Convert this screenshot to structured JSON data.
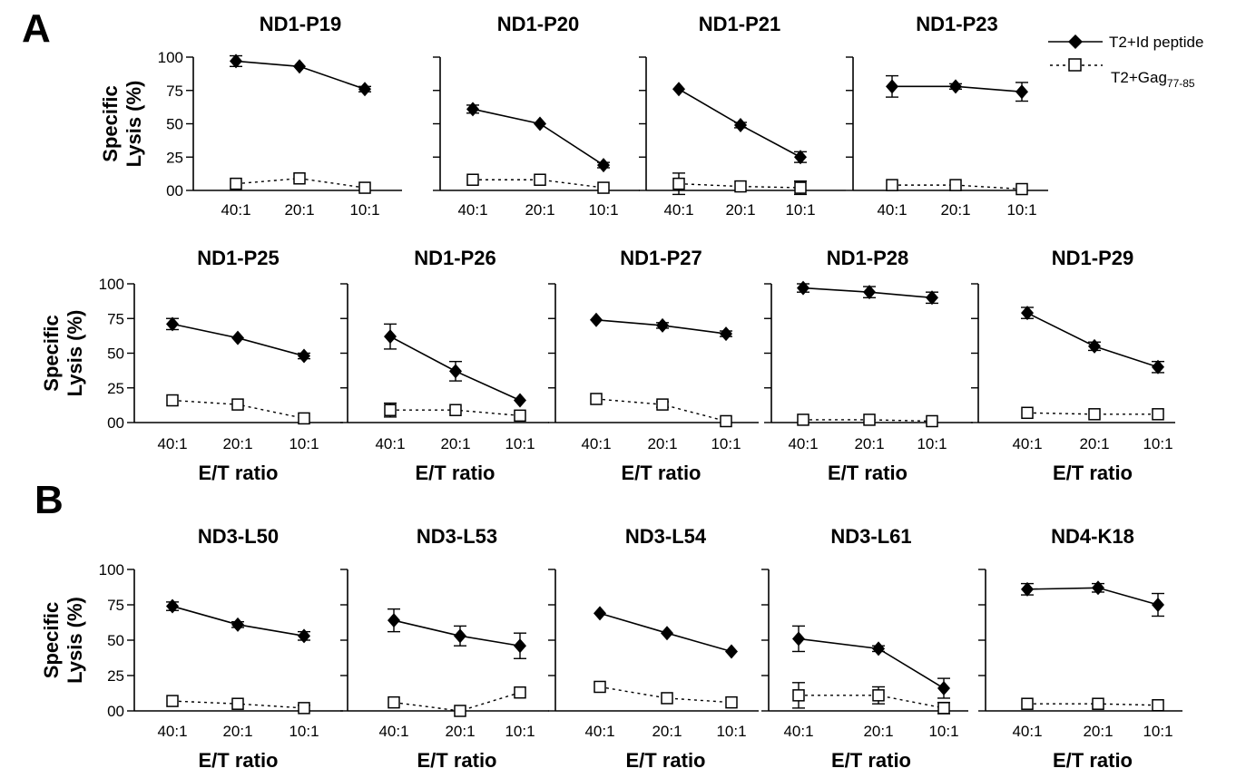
{
  "figure": {
    "panel_labels": {
      "A": "A",
      "B": "B"
    },
    "y_label_line1": "Specific",
    "y_label_line2": "Lysis (%)",
    "x_label": "E/T ratio",
    "legend": [
      {
        "label": "T2+Id peptide",
        "marker": "filled-diamond",
        "line": "solid"
      },
      {
        "label": "T2+Gag",
        "subscript": "77-85",
        "marker": "open-square",
        "line": "dotted"
      }
    ]
  },
  "colors": {
    "ink": "#000000",
    "background": "#ffffff"
  },
  "chart_data": [
    {
      "type": "line",
      "title": "ND1-P19",
      "categories": [
        "40:1",
        "20:1",
        "10:1"
      ],
      "ylim": [
        0,
        100
      ],
      "yticks": [
        "100",
        "75",
        "50",
        "25",
        "00"
      ],
      "show_yticks": true,
      "show_ylabel": true,
      "show_xlabel": false,
      "series": [
        {
          "name": "T2+Id peptide",
          "values": [
            97,
            93,
            76
          ],
          "errors": [
            4,
            1,
            2
          ]
        },
        {
          "name": "T2+Gag77-85",
          "values": [
            5,
            9,
            2
          ],
          "errors": [
            1,
            1,
            1
          ]
        }
      ]
    },
    {
      "type": "line",
      "title": "ND1-P20",
      "categories": [
        "40:1",
        "20:1",
        "10:1"
      ],
      "ylim": [
        0,
        100
      ],
      "yticks": [],
      "show_yticks": false,
      "show_ylabel": false,
      "show_xlabel": false,
      "series": [
        {
          "name": "T2+Id peptide",
          "values": [
            61,
            50,
            19
          ],
          "errors": [
            3,
            1,
            2
          ]
        },
        {
          "name": "T2+Gag77-85",
          "values": [
            8,
            8,
            2
          ],
          "errors": [
            1,
            1,
            1
          ]
        }
      ]
    },
    {
      "type": "line",
      "title": "ND1-P21",
      "categories": [
        "40:1",
        "20:1",
        "10:1"
      ],
      "ylim": [
        0,
        100
      ],
      "yticks": [],
      "show_yticks": false,
      "show_ylabel": false,
      "show_xlabel": false,
      "series": [
        {
          "name": "T2+Id peptide",
          "values": [
            76,
            49,
            25
          ],
          "errors": [
            1,
            2,
            4
          ]
        },
        {
          "name": "T2+Gag77-85",
          "values": [
            5,
            3,
            2
          ],
          "errors": [
            8,
            1,
            5
          ]
        }
      ]
    },
    {
      "type": "line",
      "title": "ND1-P23",
      "categories": [
        "40:1",
        "20:1",
        "10:1"
      ],
      "ylim": [
        0,
        100
      ],
      "yticks": [],
      "show_yticks": false,
      "show_ylabel": false,
      "show_xlabel": false,
      "series": [
        {
          "name": "T2+Id peptide",
          "values": [
            78,
            78,
            74
          ],
          "errors": [
            8,
            2,
            7
          ]
        },
        {
          "name": "T2+Gag77-85",
          "values": [
            4,
            4,
            1
          ],
          "errors": [
            1,
            1,
            1
          ]
        }
      ]
    },
    {
      "type": "line",
      "title": "ND1-P25",
      "categories": [
        "40:1",
        "20:1",
        "10:1"
      ],
      "ylim": [
        0,
        100
      ],
      "yticks": [
        "100",
        "75",
        "50",
        "25",
        "00"
      ],
      "show_yticks": true,
      "show_ylabel": true,
      "show_xlabel": true,
      "series": [
        {
          "name": "T2+Id peptide",
          "values": [
            71,
            61,
            48
          ],
          "errors": [
            4,
            1,
            2
          ]
        },
        {
          "name": "T2+Gag77-85",
          "values": [
            16,
            13,
            3
          ],
          "errors": [
            1,
            1,
            1
          ]
        }
      ]
    },
    {
      "type": "line",
      "title": "ND1-P26",
      "categories": [
        "40:1",
        "20:1",
        "10:1"
      ],
      "ylim": [
        0,
        100
      ],
      "yticks": [],
      "show_yticks": false,
      "show_ylabel": false,
      "show_xlabel": true,
      "series": [
        {
          "name": "T2+Id peptide",
          "values": [
            62,
            37,
            16
          ],
          "errors": [
            9,
            7,
            1
          ]
        },
        {
          "name": "T2+Gag77-85",
          "values": [
            9,
            9,
            5
          ],
          "errors": [
            5,
            1,
            1
          ]
        }
      ]
    },
    {
      "type": "line",
      "title": "ND1-P27",
      "categories": [
        "40:1",
        "20:1",
        "10:1"
      ],
      "ylim": [
        0,
        100
      ],
      "yticks": [],
      "show_yticks": false,
      "show_ylabel": false,
      "show_xlabel": true,
      "series": [
        {
          "name": "T2+Id peptide",
          "values": [
            74,
            70,
            64
          ],
          "errors": [
            1,
            2,
            2
          ]
        },
        {
          "name": "T2+Gag77-85",
          "values": [
            17,
            13,
            1
          ],
          "errors": [
            1,
            2,
            1
          ]
        }
      ]
    },
    {
      "type": "line",
      "title": "ND1-P28",
      "categories": [
        "40:1",
        "20:1",
        "10:1"
      ],
      "ylim": [
        0,
        100
      ],
      "yticks": [],
      "show_yticks": false,
      "show_ylabel": false,
      "show_xlabel": true,
      "series": [
        {
          "name": "T2+Id peptide",
          "values": [
            97,
            94,
            90
          ],
          "errors": [
            3,
            4,
            4
          ]
        },
        {
          "name": "T2+Gag77-85",
          "values": [
            2,
            2,
            1
          ],
          "errors": [
            1,
            1,
            1
          ]
        }
      ]
    },
    {
      "type": "line",
      "title": "ND1-P29",
      "categories": [
        "40:1",
        "20:1",
        "10:1"
      ],
      "ylim": [
        0,
        100
      ],
      "yticks": [],
      "show_yticks": false,
      "show_ylabel": false,
      "show_xlabel": true,
      "series": [
        {
          "name": "T2+Id peptide",
          "values": [
            79,
            55,
            40
          ],
          "errors": [
            4,
            3,
            4
          ]
        },
        {
          "name": "T2+Gag77-85",
          "values": [
            7,
            6,
            6
          ],
          "errors": [
            1,
            1,
            1
          ]
        }
      ]
    },
    {
      "type": "line",
      "title": "ND3-L50",
      "categories": [
        "40:1",
        "20:1",
        "10:1"
      ],
      "ylim": [
        0,
        100
      ],
      "yticks": [
        "100",
        "75",
        "50",
        "25",
        "00"
      ],
      "show_yticks": true,
      "show_ylabel": true,
      "show_xlabel": true,
      "series": [
        {
          "name": "T2+Id peptide",
          "values": [
            74,
            61,
            53
          ],
          "errors": [
            3,
            2,
            3
          ]
        },
        {
          "name": "T2+Gag77-85",
          "values": [
            7,
            5,
            2
          ],
          "errors": [
            1,
            1,
            2
          ]
        }
      ]
    },
    {
      "type": "line",
      "title": "ND3-L53",
      "categories": [
        "40:1",
        "20:1",
        "10:1"
      ],
      "ylim": [
        0,
        100
      ],
      "yticks": [],
      "show_yticks": false,
      "show_ylabel": false,
      "show_xlabel": true,
      "series": [
        {
          "name": "T2+Id peptide",
          "values": [
            64,
            53,
            46
          ],
          "errors": [
            8,
            7,
            9
          ]
        },
        {
          "name": "T2+Gag77-85",
          "values": [
            6,
            0,
            13
          ],
          "errors": [
            1,
            1,
            1
          ]
        }
      ]
    },
    {
      "type": "line",
      "title": "ND3-L54",
      "categories": [
        "40:1",
        "20:1",
        "10:1"
      ],
      "ylim": [
        0,
        100
      ],
      "yticks": [],
      "show_yticks": false,
      "show_ylabel": false,
      "show_xlabel": true,
      "series": [
        {
          "name": "T2+Id peptide",
          "values": [
            69,
            55,
            42
          ],
          "errors": [
            1,
            1,
            1
          ]
        },
        {
          "name": "T2+Gag77-85",
          "values": [
            17,
            9,
            6
          ],
          "errors": [
            1,
            1,
            1
          ]
        }
      ]
    },
    {
      "type": "line",
      "title": "ND3-L61",
      "categories": [
        "40:1",
        "20:1",
        "10:1"
      ],
      "ylim": [
        0,
        100
      ],
      "yticks": [],
      "show_yticks": false,
      "show_ylabel": false,
      "show_xlabel": true,
      "series": [
        {
          "name": "T2+Id peptide",
          "values": [
            51,
            44,
            16
          ],
          "errors": [
            9,
            2,
            7
          ]
        },
        {
          "name": "T2+Gag77-85",
          "values": [
            11,
            11,
            2
          ],
          "errors": [
            9,
            6,
            4
          ]
        }
      ]
    },
    {
      "type": "line",
      "title": "ND4-K18",
      "categories": [
        "40:1",
        "20:1",
        "10:1"
      ],
      "ylim": [
        0,
        100
      ],
      "yticks": [],
      "show_yticks": false,
      "show_ylabel": false,
      "show_xlabel": true,
      "series": [
        {
          "name": "T2+Id peptide",
          "values": [
            86,
            87,
            75
          ],
          "errors": [
            4,
            3,
            8
          ]
        },
        {
          "name": "T2+Gag77-85",
          "values": [
            5,
            5,
            4
          ],
          "errors": [
            1,
            1,
            1
          ]
        }
      ]
    }
  ]
}
